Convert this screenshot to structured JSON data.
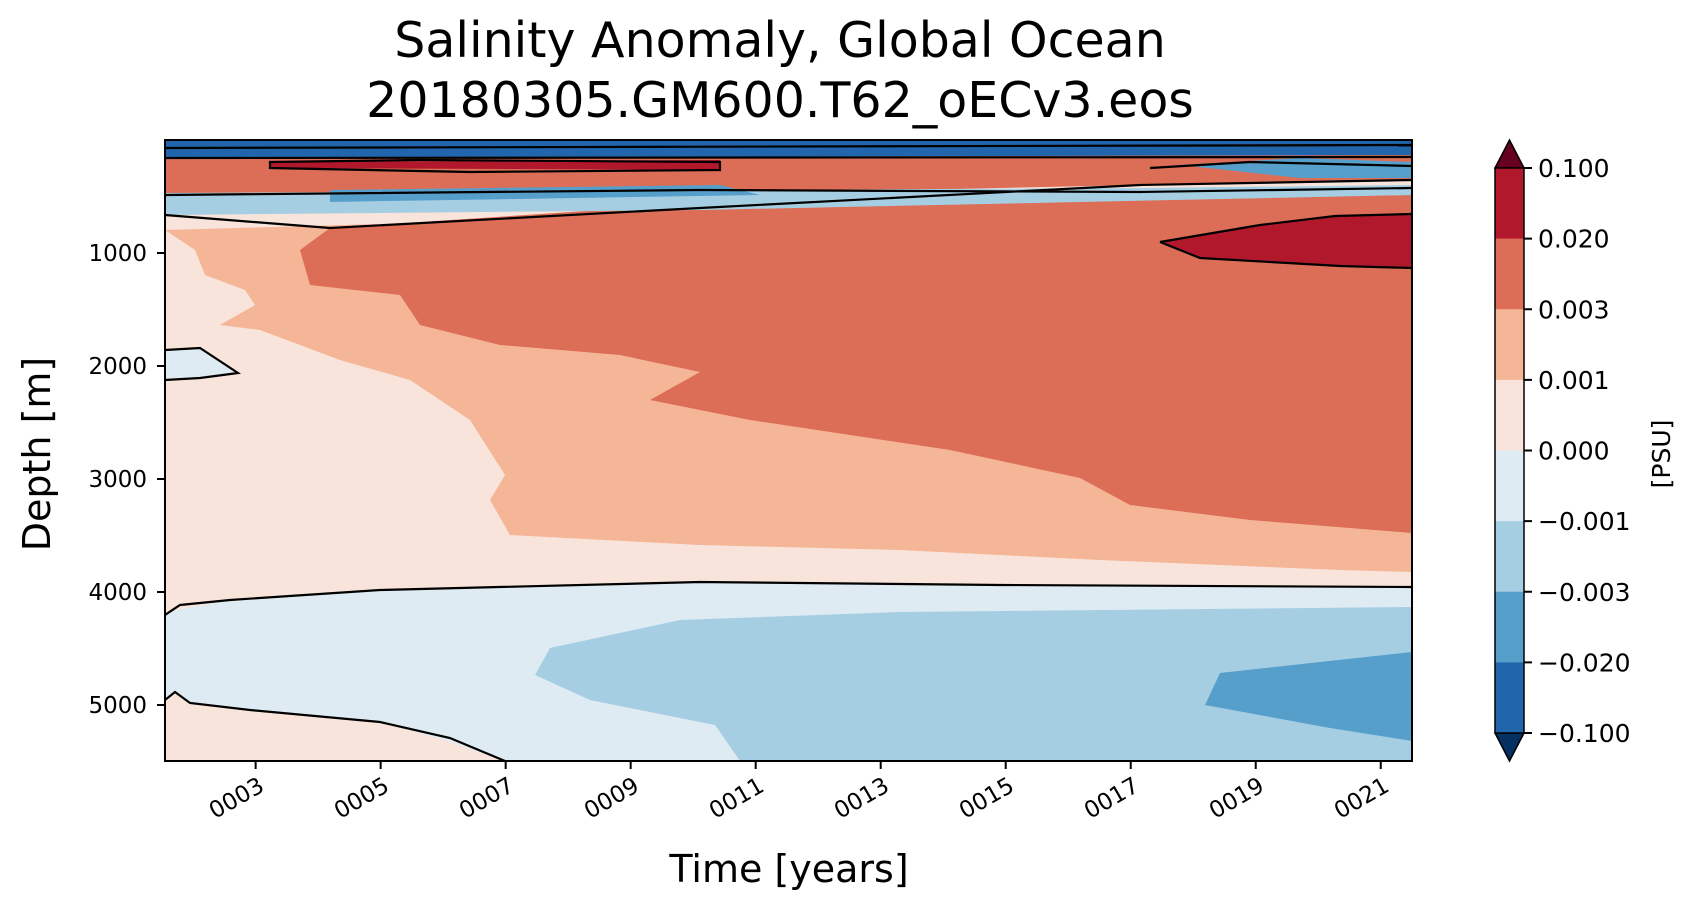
{
  "chart_data": {
    "type": "heatmap",
    "title": "Salinity Anomaly, Global Ocean",
    "subtitle": "20180305.GM600.T62_oECv3.eos",
    "xlabel": "Time [years]",
    "ylabel": "Depth [m]",
    "x_tick_labels": [
      "0003",
      "0005",
      "0007",
      "0009",
      "0011",
      "0013",
      "0015",
      "0017",
      "0019",
      "0021"
    ],
    "x_tick_values": [
      3,
      5,
      7,
      9,
      11,
      13,
      15,
      17,
      19,
      21
    ],
    "xlim": [
      1.55,
      21.5
    ],
    "y_tick_labels": [
      "1000",
      "2000",
      "3000",
      "4000",
      "5000"
    ],
    "y_tick_values": [
      1000,
      2000,
      3000,
      4000,
      5000
    ],
    "ylim": [
      5500,
      10
    ],
    "y_inverted": true,
    "colorbar": {
      "label": "[PSU]",
      "tick_labels": [
        "0.100",
        "0.020",
        "0.003",
        "0.001",
        "0.000",
        "−0.001",
        "−0.003",
        "−0.020",
        "−0.100"
      ],
      "levels": [
        -0.1,
        -0.02,
        -0.003,
        -0.001,
        0,
        0.001,
        0.003,
        0.02,
        0.1
      ],
      "colors": [
        "#2166ac",
        "#579fcb",
        "#a6cee3",
        "#deebf3",
        "#f9e4db",
        "#f5b597",
        "#dc6e57",
        "#b2182b"
      ],
      "extend_colors": {
        "under": "#053061",
        "over": "#67001f"
      }
    },
    "regions": [
      {
        "level": 0.001,
        "years": [
          1.55,
          21.5
        ],
        "depth": [
          10,
          5500
        ],
        "desc": "background small positive anomaly at mid-depths"
      },
      {
        "level": 0.003,
        "years": [
          3.8,
          21.5
        ],
        "depth": [
          500,
          3900
        ],
        "desc": "positive anomaly band widening with time"
      },
      {
        "level": 0.02,
        "years": [
          3.8,
          21.5
        ],
        "depth": [
          700,
          3400
        ],
        "desc": "main positive anomaly core deepening with time"
      },
      {
        "level": 0.1,
        "years": [
          17.5,
          21.5
        ],
        "depth": [
          650,
          1150
        ],
        "desc": "strong positive wedge at ~1000 m late in run"
      },
      {
        "level": -0.001,
        "years": [
          1.55,
          21.5
        ],
        "depth": [
          3950,
          5500
        ],
        "desc": "negative anomaly at abyssal depths"
      },
      {
        "level": -0.003,
        "years": [
          7.5,
          21.5
        ],
        "depth": [
          4150,
          5500
        ],
        "desc": "stronger abyssal negative anomaly"
      },
      {
        "level": -0.02,
        "years": [
          18,
          21.5
        ],
        "depth": [
          4550,
          5350
        ],
        "desc": "strongest abyssal negative anomaly late"
      },
      {
        "level": -0.1,
        "years": [
          1.55,
          21.5
        ],
        "depth": [
          10,
          150
        ],
        "desc": "strong negative near surface"
      }
    ]
  }
}
